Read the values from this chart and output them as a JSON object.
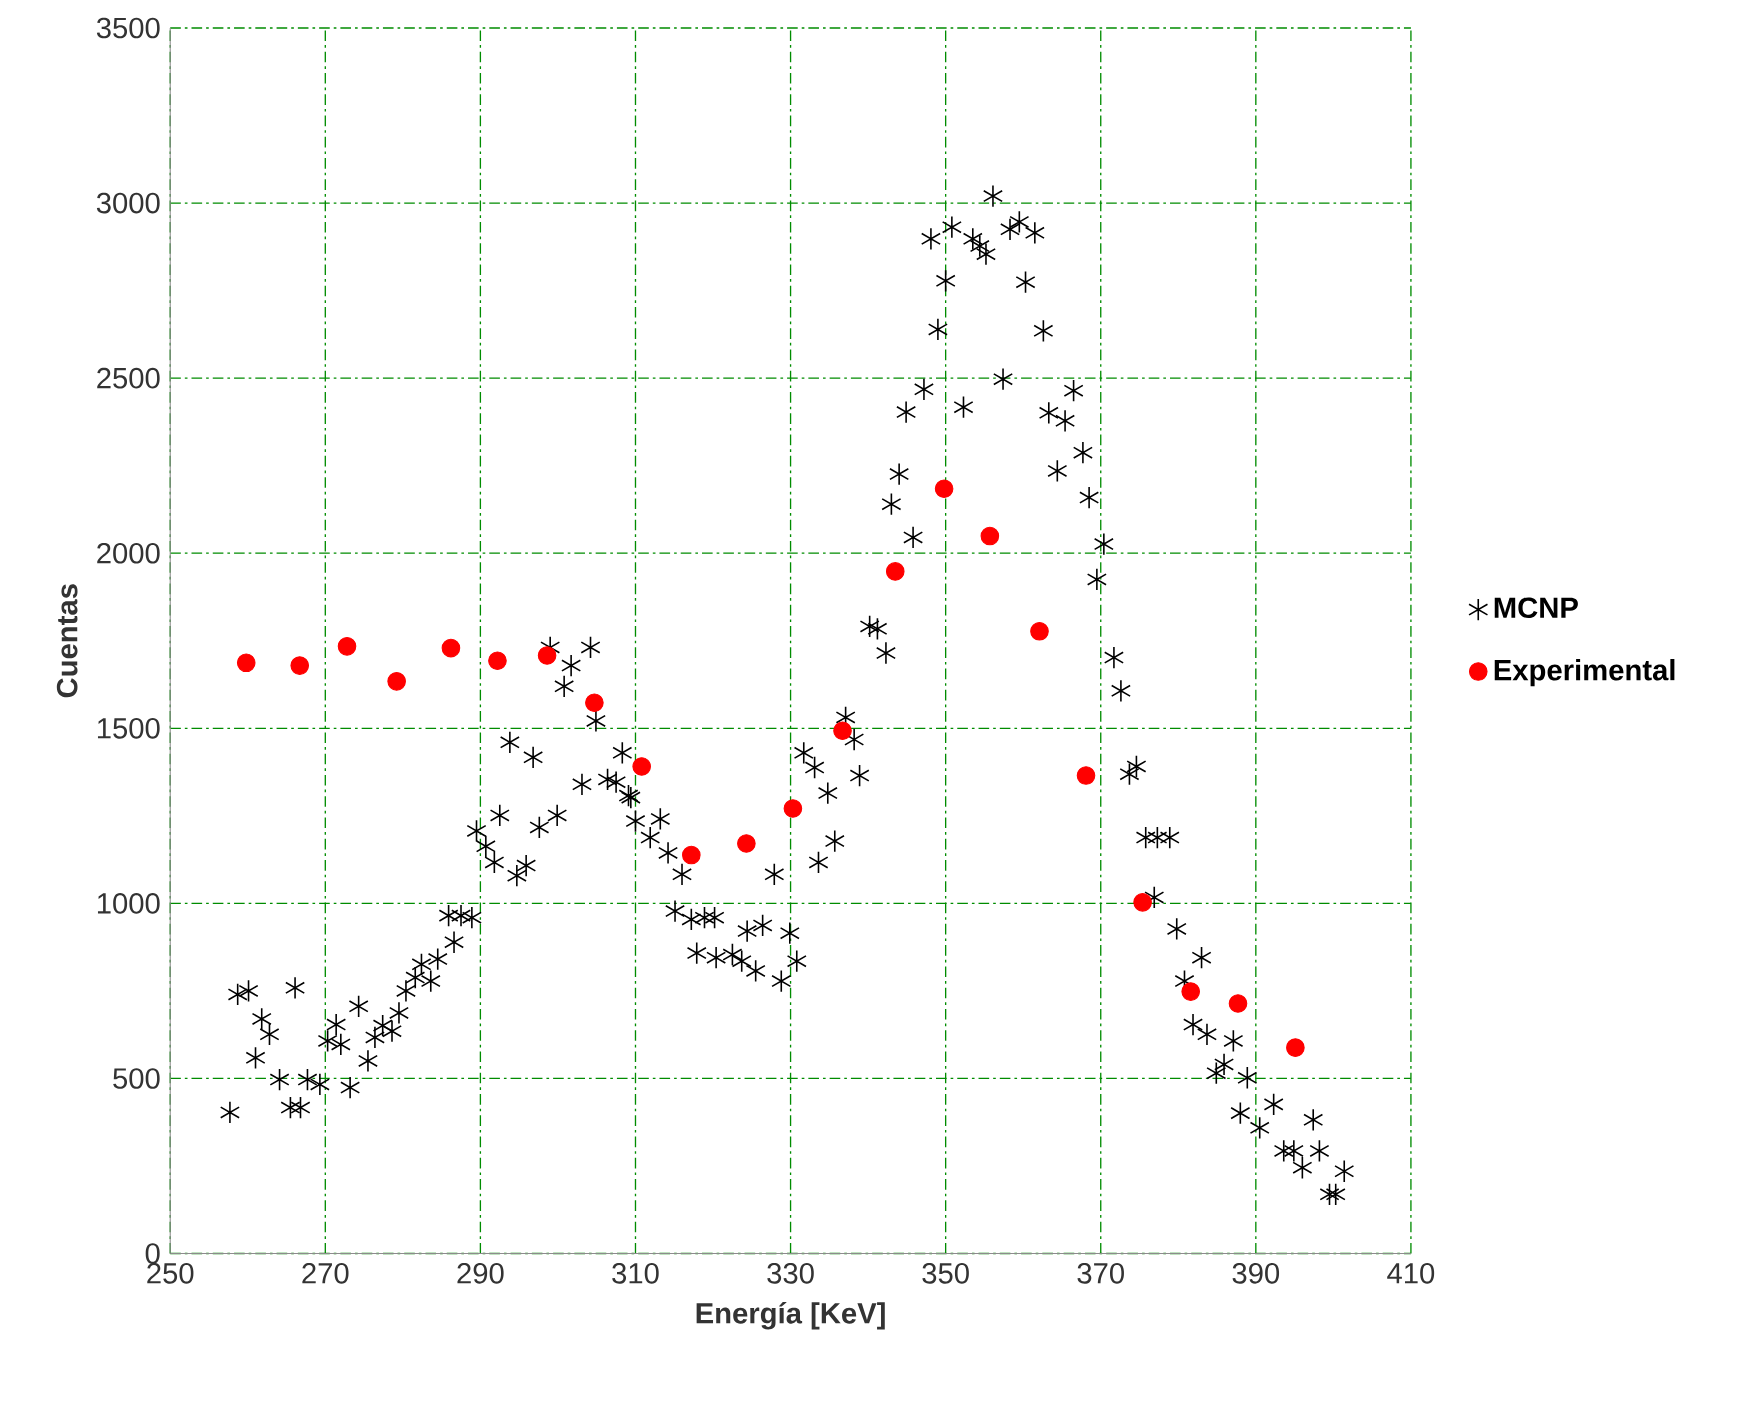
{
  "chart_data": {
    "type": "scatter",
    "xlabel": "Energía [KeV]",
    "ylabel": "Cuentas",
    "xlim": [
      250,
      410
    ],
    "ylim": [
      0,
      3500
    ],
    "xticks": [
      250,
      270,
      290,
      310,
      330,
      350,
      370,
      390,
      410
    ],
    "yticks": [
      0,
      500,
      1000,
      1500,
      2000,
      2500,
      3000,
      3500
    ],
    "grid": true,
    "legend": "right",
    "series": [
      {
        "name": "MCNP",
        "color": "#000000",
        "marker": "cross",
        "x": [
          257.7,
          258.7,
          260.1,
          261,
          261.8,
          262.8,
          264.1,
          265.5,
          266.1,
          266.8,
          267.7,
          269.3,
          270.3,
          271.4,
          272,
          273.2,
          274.3,
          275.5,
          276.4,
          277.4,
          278.6,
          279.5,
          280.4,
          281.6,
          282.4,
          283.6,
          284.5,
          285.9,
          286.6,
          287.5,
          288.9,
          289.5,
          290.7,
          291.8,
          292.5,
          293.8,
          294.7,
          295.9,
          296.8,
          297.6,
          299,
          299.9,
          300.8,
          301.7,
          303.1,
          304.2,
          304.9,
          306.4,
          307.5,
          308.3,
          309.1,
          309.4,
          310,
          311.9,
          313.2,
          314.2,
          315.1,
          316,
          317.2,
          317.9,
          318.9,
          320.2,
          320.4,
          322.5,
          323.7,
          324.4,
          325.5,
          326.4,
          327.9,
          328.8,
          329.9,
          330.8,
          331.7,
          333.1,
          333.6,
          334.8,
          335.7,
          337.1,
          338.2,
          338.9,
          340.2,
          341.2,
          342.3,
          343,
          344,
          344.9,
          345.8,
          347.2,
          348.1,
          349,
          350,
          350.8,
          352.3,
          353.5,
          354.4,
          355.2,
          356.1,
          357.4,
          358.3,
          359.5,
          360.3,
          361.5,
          362.6,
          363.3,
          364.4,
          365.4,
          366.5,
          367.7,
          368.5,
          369.5,
          370.4,
          371.7,
          372.6,
          373.7,
          374.6,
          375.8,
          376.9,
          377.3,
          378.9,
          379.8,
          380.8,
          381.9,
          383,
          383.7,
          384.9,
          385.9,
          387.1,
          388,
          388.9,
          390.5,
          392.3,
          393.6,
          394.9,
          396,
          397.4,
          398.2,
          399.5,
          400.3,
          401.4
        ],
        "values": [
          403,
          740,
          750,
          559,
          670,
          626,
          497,
          417,
          759,
          417,
          497,
          483,
          607,
          654,
          597,
          474,
          706,
          550,
          617,
          651,
          635,
          687,
          750,
          788,
          826,
          778,
          841,
          965,
          889,
          965,
          959,
          1207,
          1163,
          1117,
          1251,
          1460,
          1079,
          1108,
          1417,
          1217,
          1731,
          1251,
          1620,
          1679,
          1340,
          1731,
          1521,
          1354,
          1346,
          1430,
          1308,
          1302,
          1235,
          1188,
          1241,
          1144,
          978,
          1083,
          954,
          858,
          959,
          959,
          845,
          854,
          835,
          921,
          807,
          937,
          1083,
          778,
          915,
          835,
          1430,
          1388,
          1117,
          1315,
          1178,
          1531,
          1468,
          1365,
          1791,
          1784,
          1715,
          2140,
          2226,
          2403,
          2045,
          2468,
          2898,
          2639,
          2778,
          2931,
          2417,
          2898,
          2877,
          2854,
          3020,
          2497,
          2925,
          2946,
          2774,
          2915,
          2635,
          2401,
          2235,
          2378,
          2464,
          2287,
          2159,
          1925,
          2026,
          1702,
          1607,
          1369,
          1391,
          1188,
          1017,
          1188,
          1188,
          927,
          778,
          654,
          845,
          626,
          515,
          540,
          607,
          401,
          502,
          359,
          426,
          293,
          293,
          245,
          382,
          293,
          169,
          169,
          235
        ]
      },
      {
        "name": "Experimental",
        "color": "#ff0000",
        "marker": "circle",
        "x": [
          259.8,
          266.7,
          272.8,
          279.2,
          286.2,
          292.2,
          298.6,
          304.7,
          310.8,
          317.2,
          324.3,
          330.3,
          336.7,
          343.5,
          349.8,
          355.7,
          362.1,
          368.1,
          375.4,
          381.6,
          387.7,
          395.1
        ],
        "values": [
          1687,
          1679,
          1734,
          1634,
          1729,
          1693,
          1708,
          1573,
          1391,
          1138,
          1171,
          1271,
          1493,
          1948,
          2184,
          2049,
          1777,
          1365,
          1003,
          748,
          714,
          588
        ]
      }
    ]
  }
}
